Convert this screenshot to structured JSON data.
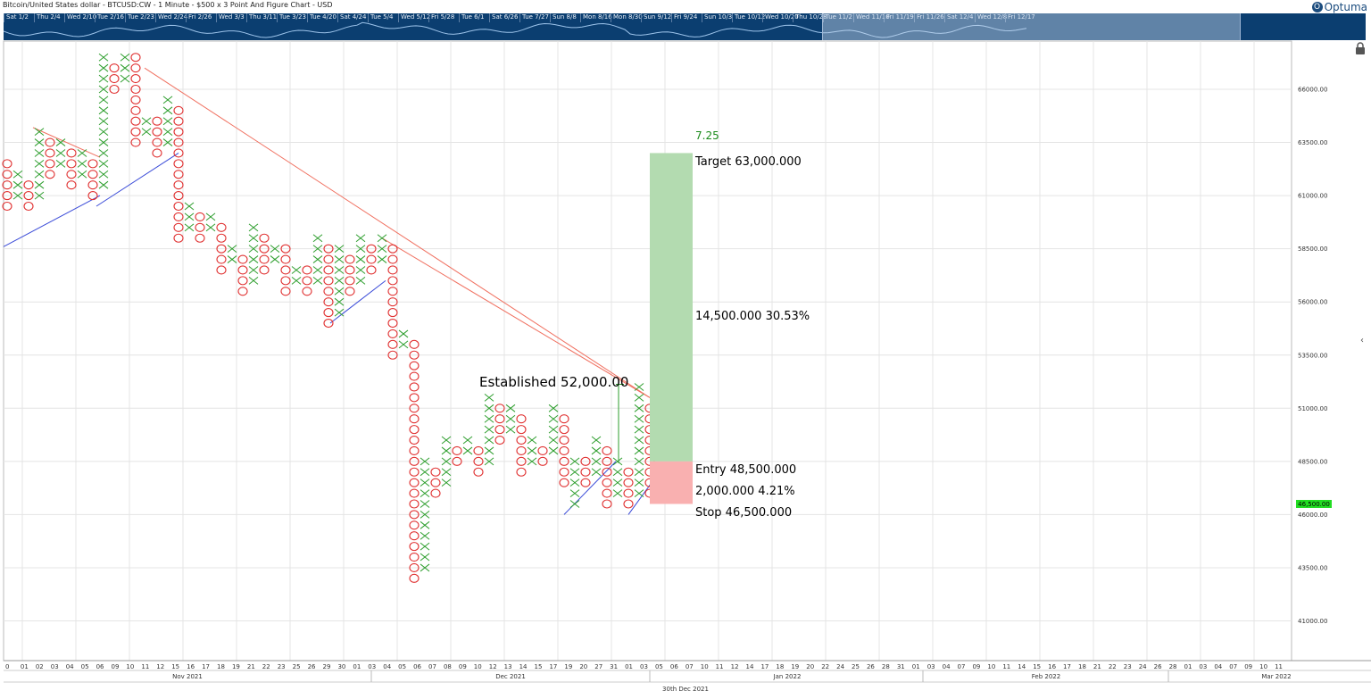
{
  "header": {
    "title": "Bitcoin/United States dollar - BTCUSD:CW - 1 Minute - $500 x 3 Point And Figure Chart - USD",
    "logo_text": "Optuma"
  },
  "navigator": {
    "labels": [
      "Sat 1/2",
      "Thu 2/4",
      "Wed 2/10",
      "Tue 2/16",
      "Tue 2/23",
      "Wed 2/24",
      "Fri 2/26",
      "Wed 3/3",
      "Thu 3/11",
      "Tue 3/23",
      "Tue 4/20",
      "Sat 4/24",
      "Tue 5/4",
      "Wed 5/12",
      "Fri 5/28",
      "Tue 6/1",
      "Sat 6/26",
      "Tue 7/27",
      "Sun 8/8",
      "Mon 8/16",
      "Mon 8/30",
      "Sun 9/12",
      "Fri 9/24",
      "Sun 10/3",
      "Tue 10/12",
      "Wed 10/20",
      "Thu 10/28",
      "Tue 11/2",
      "Wed 11/10",
      "Fri 11/19",
      "Fri 11/26",
      "Sat 12/4",
      "Wed 12/8",
      "Fri 12/17"
    ]
  },
  "icons": {
    "lock": "lock-icon",
    "collapse": "chevron-left-icon",
    "logo": "optuma-logo-icon"
  },
  "colors": {
    "x": "#2e9e2e",
    "o": "#e03030",
    "resistance": "#f07060",
    "support": "#3a4bd8",
    "target_zone": "#b3dbb0",
    "stop_zone": "#f9b0b0",
    "price_badge": "#22dd22",
    "count_label": "#1a8a1a"
  },
  "chart_data": {
    "type": "point_and_figure",
    "box_size": 500,
    "reversal": 3,
    "ylim": [
      40000,
      67000
    ],
    "y_ticks": [
      "41000.00",
      "43500.00",
      "46000.00",
      "48500.00",
      "51000.00",
      "53500.00",
      "56000.00",
      "58500.00",
      "61000.00",
      "63500.00",
      "66000.00"
    ],
    "x_ticks": [
      "0",
      "01",
      "02",
      "03",
      "04",
      "05",
      "06",
      "09",
      "10",
      "11",
      "12",
      "15",
      "16",
      "17",
      "18",
      "19",
      "21",
      "22",
      "23",
      "25",
      "26",
      "29",
      "30",
      "01",
      "03",
      "04",
      "05",
      "06",
      "07",
      "08",
      "09",
      "10",
      "12",
      "13",
      "14",
      "15",
      "17",
      "19",
      "20",
      "27",
      "31",
      "01",
      "03",
      "05",
      "06",
      "07",
      "10",
      "11",
      "12",
      "14",
      "17",
      "18",
      "19",
      "20",
      "22",
      "24",
      "25",
      "26",
      "28",
      "31",
      "01",
      "03",
      "04",
      "07",
      "09",
      "10",
      "11",
      "14",
      "15",
      "16",
      "17",
      "18",
      "21",
      "22",
      "23",
      "24",
      "26",
      "28",
      "01",
      "03",
      "04",
      "07",
      "09",
      "10",
      "11"
    ],
    "months": [
      "Nov 2021",
      "Dec 2021",
      "Jan 2022",
      "Feb 2022",
      "Mar 2022"
    ],
    "current_date": "30th Dec 2021",
    "last_price": "46,500.00",
    "columns": [
      {
        "t": "O",
        "lo": 60500,
        "hi": 62500
      },
      {
        "t": "X",
        "lo": 61000,
        "hi": 62000
      },
      {
        "t": "O",
        "lo": 60500,
        "hi": 61500
      },
      {
        "t": "X",
        "lo": 61000,
        "hi": 64000
      },
      {
        "t": "O",
        "lo": 62000,
        "hi": 63500
      },
      {
        "t": "X",
        "lo": 62500,
        "hi": 63500
      },
      {
        "t": "O",
        "lo": 61500,
        "hi": 63000
      },
      {
        "t": "X",
        "lo": 62000,
        "hi": 63000
      },
      {
        "t": "O",
        "lo": 61000,
        "hi": 62500
      },
      {
        "t": "X",
        "lo": 61500,
        "hi": 67500
      },
      {
        "t": "O",
        "lo": 66000,
        "hi": 67000
      },
      {
        "t": "X",
        "lo": 66500,
        "hi": 67500
      },
      {
        "t": "O",
        "lo": 63500,
        "hi": 67500
      },
      {
        "t": "X",
        "lo": 64000,
        "hi": 64500
      },
      {
        "t": "O",
        "lo": 63000,
        "hi": 64500
      },
      {
        "t": "X",
        "lo": 63500,
        "hi": 65500
      },
      {
        "t": "O",
        "lo": 59000,
        "hi": 65000
      },
      {
        "t": "X",
        "lo": 59500,
        "hi": 60500
      },
      {
        "t": "O",
        "lo": 59000,
        "hi": 60000
      },
      {
        "t": "X",
        "lo": 59500,
        "hi": 60000
      },
      {
        "t": "O",
        "lo": 57500,
        "hi": 59500
      },
      {
        "t": "X",
        "lo": 58000,
        "hi": 58500
      },
      {
        "t": "O",
        "lo": 56500,
        "hi": 58000
      },
      {
        "t": "X",
        "lo": 57000,
        "hi": 59500
      },
      {
        "t": "O",
        "lo": 57500,
        "hi": 59000
      },
      {
        "t": "X",
        "lo": 58000,
        "hi": 58500
      },
      {
        "t": "O",
        "lo": 56500,
        "hi": 58500
      },
      {
        "t": "X",
        "lo": 57000,
        "hi": 57500
      },
      {
        "t": "O",
        "lo": 56500,
        "hi": 57500
      },
      {
        "t": "X",
        "lo": 57000,
        "hi": 59000
      },
      {
        "t": "O",
        "lo": 55000,
        "hi": 58500
      },
      {
        "t": "X",
        "lo": 55500,
        "hi": 58500
      },
      {
        "t": "O",
        "lo": 56500,
        "hi": 58000
      },
      {
        "t": "X",
        "lo": 57000,
        "hi": 59000
      },
      {
        "t": "O",
        "lo": 57500,
        "hi": 58500
      },
      {
        "t": "X",
        "lo": 58000,
        "hi": 59000
      },
      {
        "t": "O",
        "lo": 53500,
        "hi": 58500
      },
      {
        "t": "X",
        "lo": 54000,
        "hi": 54500
      },
      {
        "t": "O",
        "lo": 43000,
        "hi": 54000
      },
      {
        "t": "X",
        "lo": 43500,
        "hi": 48500
      },
      {
        "t": "O",
        "lo": 47000,
        "hi": 48000
      },
      {
        "t": "X",
        "lo": 47500,
        "hi": 49500
      },
      {
        "t": "O",
        "lo": 48500,
        "hi": 49000
      },
      {
        "t": "X",
        "lo": 49000,
        "hi": 49500
      },
      {
        "t": "O",
        "lo": 48000,
        "hi": 49000
      },
      {
        "t": "X",
        "lo": 48500,
        "hi": 51500
      },
      {
        "t": "O",
        "lo": 49500,
        "hi": 51000
      },
      {
        "t": "X",
        "lo": 50000,
        "hi": 51000
      },
      {
        "t": "O",
        "lo": 48000,
        "hi": 50500
      },
      {
        "t": "X",
        "lo": 48500,
        "hi": 49500
      },
      {
        "t": "O",
        "lo": 48500,
        "hi": 49000
      },
      {
        "t": "X",
        "lo": 49000,
        "hi": 51000
      },
      {
        "t": "O",
        "lo": 47500,
        "hi": 50500
      },
      {
        "t": "X",
        "lo": 46500,
        "hi": 48500
      },
      {
        "t": "O",
        "lo": 47500,
        "hi": 48500
      },
      {
        "t": "X",
        "lo": 48000,
        "hi": 49500
      },
      {
        "t": "O",
        "lo": 46500,
        "hi": 49000
      },
      {
        "t": "X",
        "lo": 47000,
        "hi": 48500
      },
      {
        "t": "O",
        "lo": 46500,
        "hi": 48000
      },
      {
        "t": "X",
        "lo": 47000,
        "hi": 52000
      },
      {
        "t": "O",
        "lo": 47000,
        "hi": 51000
      }
    ],
    "annotations": {
      "established": "Established 52,000.00",
      "count": "7.25",
      "target": "Target   63,000.000",
      "gain": "14,500.000   30.53%",
      "entry": "Entry   48,500.000",
      "risk": "2,000.000   4.21%",
      "stop": "Stop   46,500.000"
    },
    "levels": {
      "target": 63000,
      "entry": 48500,
      "stop": 46500,
      "established": 52000
    }
  }
}
